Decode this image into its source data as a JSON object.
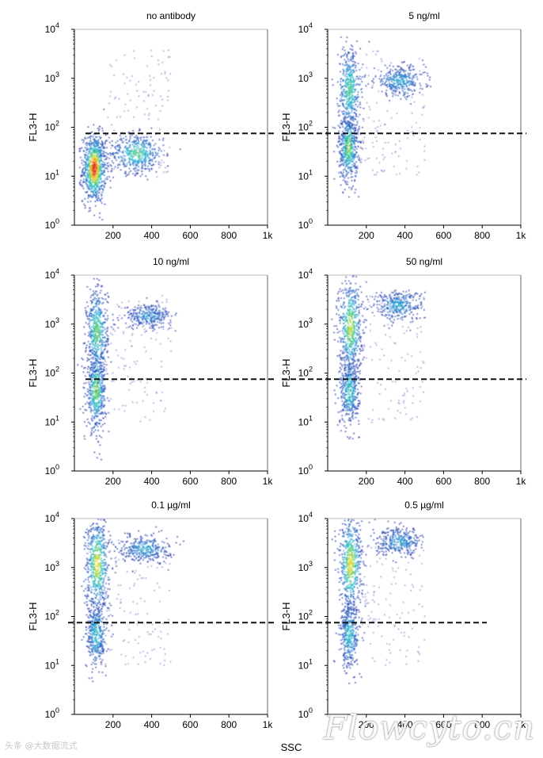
{
  "figure": {
    "x_axis_label": "SSC",
    "y_axis_label": "FL3-H",
    "x_tick_labels": [
      "200",
      "400",
      "600",
      "800",
      "1k"
    ],
    "y_tick_base": "10",
    "y_tick_exponents": [
      "0",
      "1",
      "2",
      "3",
      "4"
    ],
    "colors": {
      "density_low": "#1b2ca8",
      "density_mid": "#1fb0d0",
      "density_high": "#d82a1c",
      "gate_line": "#111111",
      "axes": "#000000"
    }
  },
  "watermarks": {
    "bottom_right": "Flowcyto.cn",
    "bottom_left": "头条 @大数据流式"
  },
  "chart_data": [
    {
      "type": "scatter",
      "title": "no antibody",
      "xlabel": "",
      "ylabel": "FL3-H",
      "xlim": [
        0,
        1000
      ],
      "ylim": [
        1,
        10000
      ],
      "y_scale": "log",
      "gate_threshold": 75,
      "populations": [
        {
          "x": 100,
          "y": 15,
          "sx": 30,
          "sy_log": 0.35,
          "weight": 0.65
        },
        {
          "x": 320,
          "y": 30,
          "sx": 70,
          "sy_log": 0.2,
          "weight": 0.35
        }
      ]
    },
    {
      "type": "scatter",
      "title": "5 ng/ml",
      "xlabel": "",
      "ylabel": "FL3-H",
      "xlim": [
        0,
        1000
      ],
      "ylim": [
        1,
        10000
      ],
      "y_scale": "log",
      "gate_threshold": 75,
      "populations": [
        {
          "x": 105,
          "y": 40,
          "sx": 25,
          "sy_log": 0.35,
          "weight": 0.4
        },
        {
          "x": 110,
          "y": 600,
          "sx": 28,
          "sy_log": 0.45,
          "weight": 0.35
        },
        {
          "x": 370,
          "y": 900,
          "sx": 65,
          "sy_log": 0.15,
          "weight": 0.25
        }
      ]
    },
    {
      "type": "scatter",
      "title": "10 ng/ml",
      "xlabel": "",
      "ylabel": "FL3-H",
      "xlim": [
        0,
        1000
      ],
      "ylim": [
        1,
        10000
      ],
      "y_scale": "log",
      "gate_threshold": 75,
      "populations": [
        {
          "x": 110,
          "y": 45,
          "sx": 25,
          "sy_log": 0.4,
          "weight": 0.4
        },
        {
          "x": 115,
          "y": 700,
          "sx": 28,
          "sy_log": 0.45,
          "weight": 0.38
        },
        {
          "x": 380,
          "y": 1500,
          "sx": 60,
          "sy_log": 0.12,
          "weight": 0.22
        }
      ]
    },
    {
      "type": "scatter",
      "title": "50 ng/ml",
      "xlabel": "",
      "ylabel": "FL3-H",
      "xlim": [
        0,
        1000
      ],
      "ylim": [
        1,
        10000
      ],
      "y_scale": "log",
      "gate_threshold": 75,
      "populations": [
        {
          "x": 110,
          "y": 45,
          "sx": 25,
          "sy_log": 0.35,
          "weight": 0.32
        },
        {
          "x": 115,
          "y": 900,
          "sx": 30,
          "sy_log": 0.5,
          "weight": 0.43
        },
        {
          "x": 360,
          "y": 2500,
          "sx": 65,
          "sy_log": 0.15,
          "weight": 0.25
        }
      ]
    },
    {
      "type": "scatter",
      "title": "0.1 µg/ml",
      "xlabel": "",
      "ylabel": "FL3-H",
      "xlim": [
        0,
        1000
      ],
      "ylim": [
        1,
        10000
      ],
      "y_scale": "log",
      "gate_threshold": 75,
      "populations": [
        {
          "x": 110,
          "y": 45,
          "sx": 25,
          "sy_log": 0.35,
          "weight": 0.3
        },
        {
          "x": 115,
          "y": 1200,
          "sx": 30,
          "sy_log": 0.5,
          "weight": 0.45
        },
        {
          "x": 360,
          "y": 2500,
          "sx": 65,
          "sy_log": 0.14,
          "weight": 0.25
        }
      ]
    },
    {
      "type": "scatter",
      "title": "0.5 µg/ml",
      "xlabel": "",
      "ylabel": "FL3-H",
      "xlim": [
        0,
        1000
      ],
      "ylim": [
        1,
        10000
      ],
      "y_scale": "log",
      "gate_threshold": 75,
      "populations": [
        {
          "x": 110,
          "y": 45,
          "sx": 25,
          "sy_log": 0.35,
          "weight": 0.3
        },
        {
          "x": 115,
          "y": 1200,
          "sx": 30,
          "sy_log": 0.5,
          "weight": 0.45
        },
        {
          "x": 370,
          "y": 3500,
          "sx": 60,
          "sy_log": 0.14,
          "weight": 0.25
        }
      ]
    }
  ]
}
